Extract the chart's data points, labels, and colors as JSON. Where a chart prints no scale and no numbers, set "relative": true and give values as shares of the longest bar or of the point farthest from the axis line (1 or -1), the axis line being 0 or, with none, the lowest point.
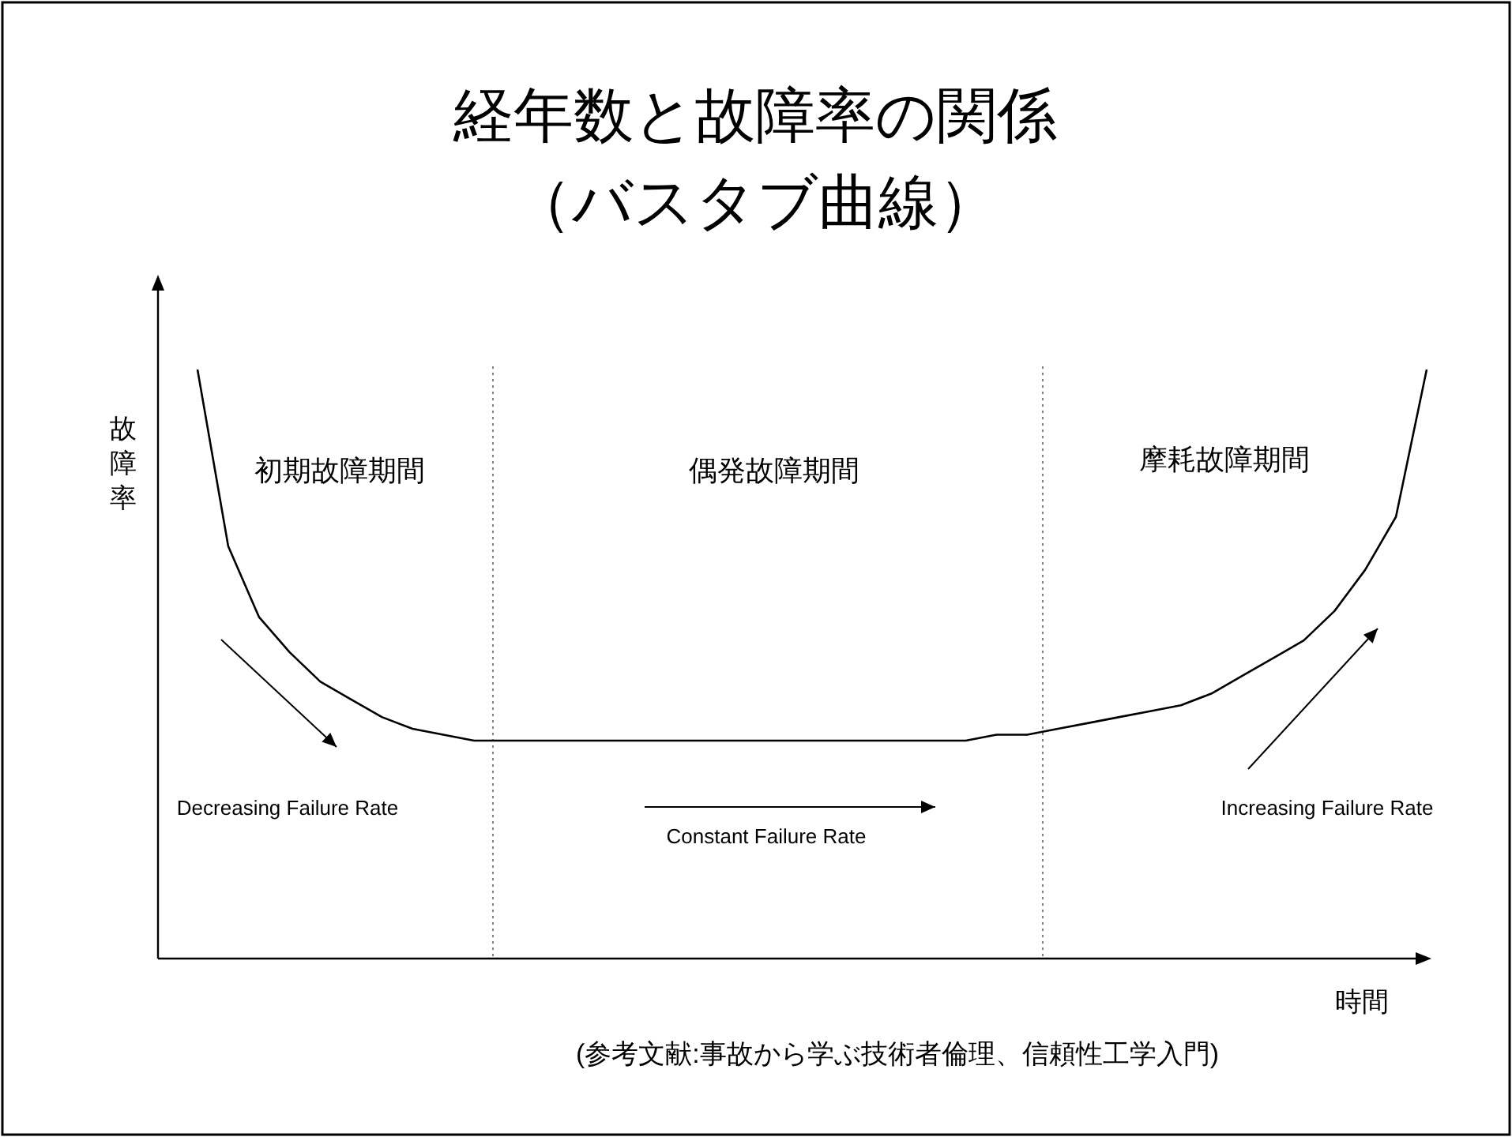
{
  "chart_data": {
    "type": "line",
    "relative": true,
    "title": "経年数と故障率の関係",
    "subtitle": "（バスタブ曲線）",
    "xlabel": "時間",
    "ylabel": "故障率",
    "categories": [
      null,
      null,
      null,
      null,
      null,
      null,
      null,
      null,
      null,
      null,
      null,
      null,
      null,
      null,
      null,
      null,
      null,
      null,
      null,
      null,
      null,
      null,
      null,
      null,
      null,
      null,
      null,
      null,
      null,
      null,
      null,
      null,
      null,
      null,
      null,
      null,
      null,
      null,
      null,
      null,
      null
    ],
    "series": [
      {
        "color": "#000000",
        "values": [
          1.0,
          0.7,
          0.58,
          0.52,
          0.47,
          0.44,
          0.41,
          0.39,
          0.38,
          0.37,
          0.37,
          0.37,
          0.37,
          0.37,
          0.37,
          0.37,
          0.37,
          0.37,
          0.37,
          0.37,
          0.37,
          0.37,
          0.37,
          0.37,
          0.37,
          0.37,
          0.38,
          0.38,
          0.39,
          0.4,
          0.41,
          0.42,
          0.43,
          0.45,
          0.48,
          0.51,
          0.54,
          0.59,
          0.66,
          0.75,
          1.0
        ]
      }
    ],
    "annotations": [
      "初期故障期間",
      "偶発故障期間",
      "摩耗故障期間",
      "Decreasing Failure Rate",
      "Constant Failure Rate",
      "Increasing Failure Rate",
      "(参考文献:事故から学ぶ技術者倫理、信頼性工学入門)"
    ]
  }
}
